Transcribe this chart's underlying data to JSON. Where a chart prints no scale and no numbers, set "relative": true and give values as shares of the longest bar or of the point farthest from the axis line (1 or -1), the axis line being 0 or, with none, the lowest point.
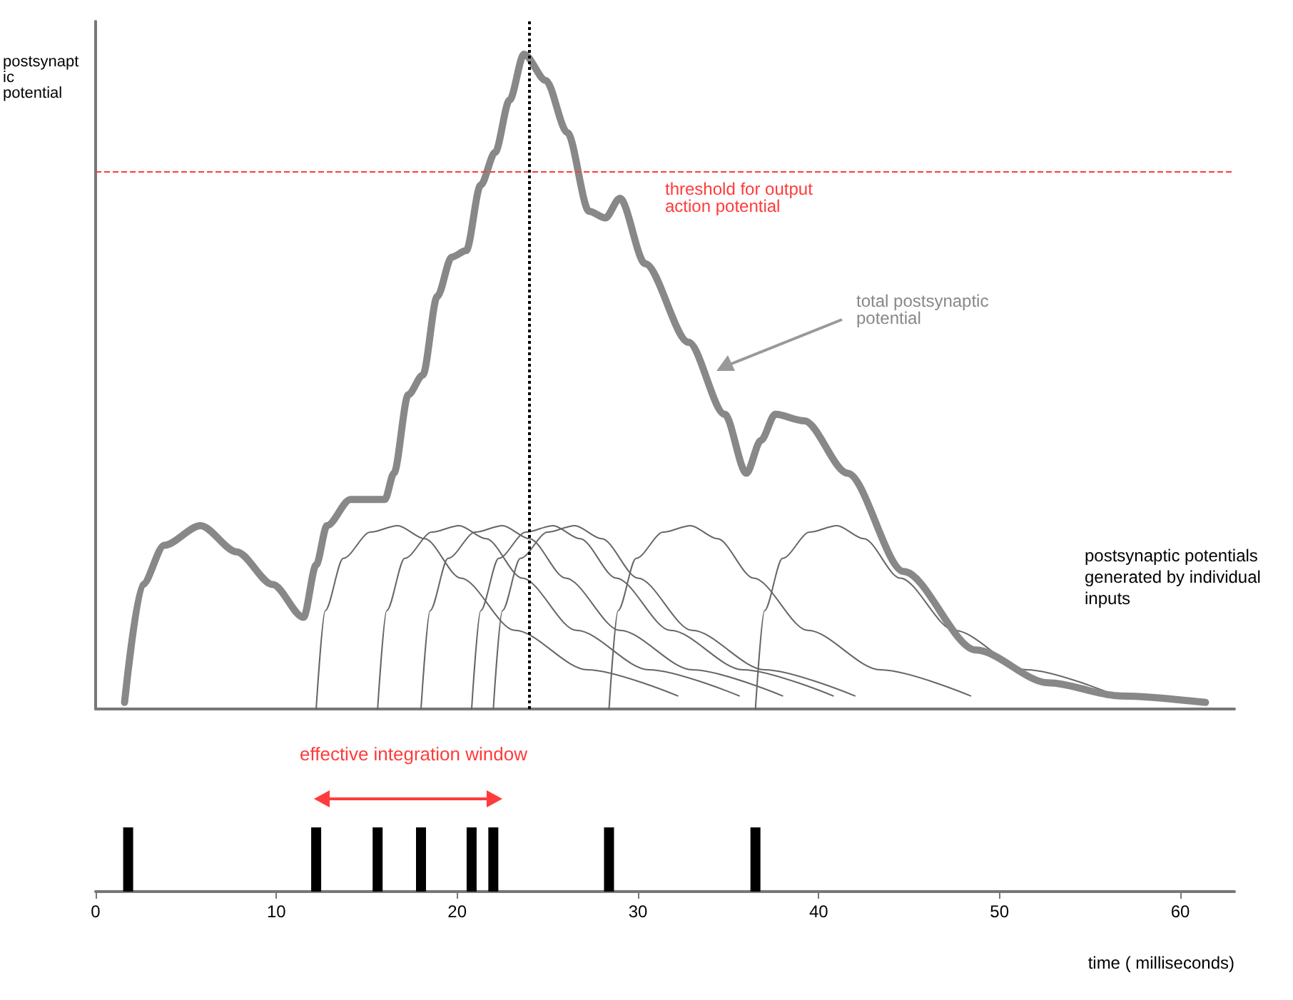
{
  "chart_data": [
    {
      "type": "line",
      "ylabel": "postsynaptic potential",
      "relative": true,
      "xlim": [
        0,
        63
      ],
      "tick_labels": false,
      "grid": false,
      "legend": false,
      "marker": "none",
      "annotations": [
        "postsynaptic potentials generated by individual inputs"
      ],
      "ref_lines": [
        {
          "axis": "y",
          "value": 0.82,
          "label": "threshold for output action potential",
          "color": "#ff3b3b",
          "line_style": "dashed"
        },
        {
          "axis": "x",
          "value": 24,
          "color": "#000000",
          "line_style": "dotted"
        }
      ],
      "series": [
        {
          "name": "total postsynaptic potential",
          "color": "#888888",
          "x": [
            1.6,
            2.6,
            3.8,
            5.8,
            7.8,
            9.8,
            11.5,
            12.2,
            12.8,
            14.1,
            16,
            16.5,
            17.3,
            18.1,
            18.9,
            19.7,
            20.5,
            21.3,
            22.1,
            22.9,
            23.7,
            24.9,
            26.1,
            27.3,
            28.2,
            29,
            30.4,
            32.8,
            34.8,
            36,
            36.8,
            37.6,
            39.2,
            41.6,
            44.7,
            48.7,
            52.7,
            56.7,
            61.4
          ],
          "values": [
            0.01,
            0.19,
            0.25,
            0.28,
            0.24,
            0.19,
            0.14,
            0.22,
            0.28,
            0.32,
            0.32,
            0.36,
            0.48,
            0.51,
            0.63,
            0.69,
            0.7,
            0.8,
            0.85,
            0.93,
            1,
            0.96,
            0.88,
            0.76,
            0.75,
            0.78,
            0.68,
            0.56,
            0.45,
            0.36,
            0.41,
            0.45,
            0.44,
            0.36,
            0.21,
            0.09,
            0.04,
            0.02,
            0.01
          ]
        },
        {
          "color": "#666666",
          "x": [
            12.2,
            12.7,
            13.7,
            15.2,
            16.7,
            18.2,
            20.2,
            23.2,
            27.2,
            32.2
          ],
          "values": [
            0,
            0.15,
            0.23,
            0.27,
            0.28,
            0.26,
            0.2,
            0.12,
            0.06,
            0.02
          ]
        },
        {
          "color": "#666666",
          "x": [
            15.6,
            16.1,
            17.1,
            18.6,
            20.1,
            21.6,
            23.6,
            26.6,
            30.6,
            35.6
          ],
          "values": [
            0,
            0.15,
            0.23,
            0.27,
            0.28,
            0.26,
            0.2,
            0.12,
            0.06,
            0.02
          ]
        },
        {
          "color": "#666666",
          "x": [
            18,
            18.5,
            19.5,
            21,
            22.5,
            24,
            26,
            29,
            33,
            38
          ],
          "values": [
            0,
            0.15,
            0.23,
            0.27,
            0.28,
            0.26,
            0.2,
            0.12,
            0.06,
            0.02
          ]
        },
        {
          "color": "#666666",
          "x": [
            20.8,
            21.3,
            22.3,
            23.8,
            25.3,
            26.8,
            28.8,
            31.8,
            35.8,
            40.8
          ],
          "values": [
            0,
            0.15,
            0.23,
            0.27,
            0.28,
            0.26,
            0.2,
            0.12,
            0.06,
            0.02
          ]
        },
        {
          "color": "#666666",
          "x": [
            22,
            22.5,
            23.5,
            25,
            26.5,
            28,
            30,
            33,
            37,
            42
          ],
          "values": [
            0,
            0.15,
            0.23,
            0.27,
            0.28,
            0.26,
            0.2,
            0.12,
            0.06,
            0.02
          ]
        },
        {
          "color": "#666666",
          "x": [
            28.4,
            28.9,
            29.9,
            31.4,
            32.9,
            34.4,
            36.4,
            39.4,
            43.4,
            48.4
          ],
          "values": [
            0,
            0.15,
            0.23,
            0.27,
            0.28,
            0.26,
            0.2,
            0.12,
            0.06,
            0.02
          ]
        },
        {
          "color": "#666666",
          "x": [
            36.5,
            37,
            38,
            39.5,
            41,
            42.5,
            44.5,
            47.5,
            51.5,
            56.5
          ],
          "values": [
            0,
            0.15,
            0.23,
            0.27,
            0.28,
            0.26,
            0.2,
            0.12,
            0.06,
            0.02
          ]
        }
      ]
    },
    {
      "type": "bar",
      "xlabel": "time ( milliseconds)",
      "relative": true,
      "xlim": [
        0,
        63
      ],
      "xticks": [
        0,
        10,
        20,
        30,
        40,
        50,
        60
      ],
      "tick_labels": "x",
      "grid": false,
      "legend": false,
      "annotations": [
        "effective integration window"
      ],
      "x": [
        1.8,
        12.2,
        15.6,
        18,
        20.8,
        22,
        28.4,
        36.5
      ],
      "values": [
        1,
        1,
        1,
        1,
        1,
        1,
        1,
        1
      ],
      "color": "#000000"
    }
  ]
}
